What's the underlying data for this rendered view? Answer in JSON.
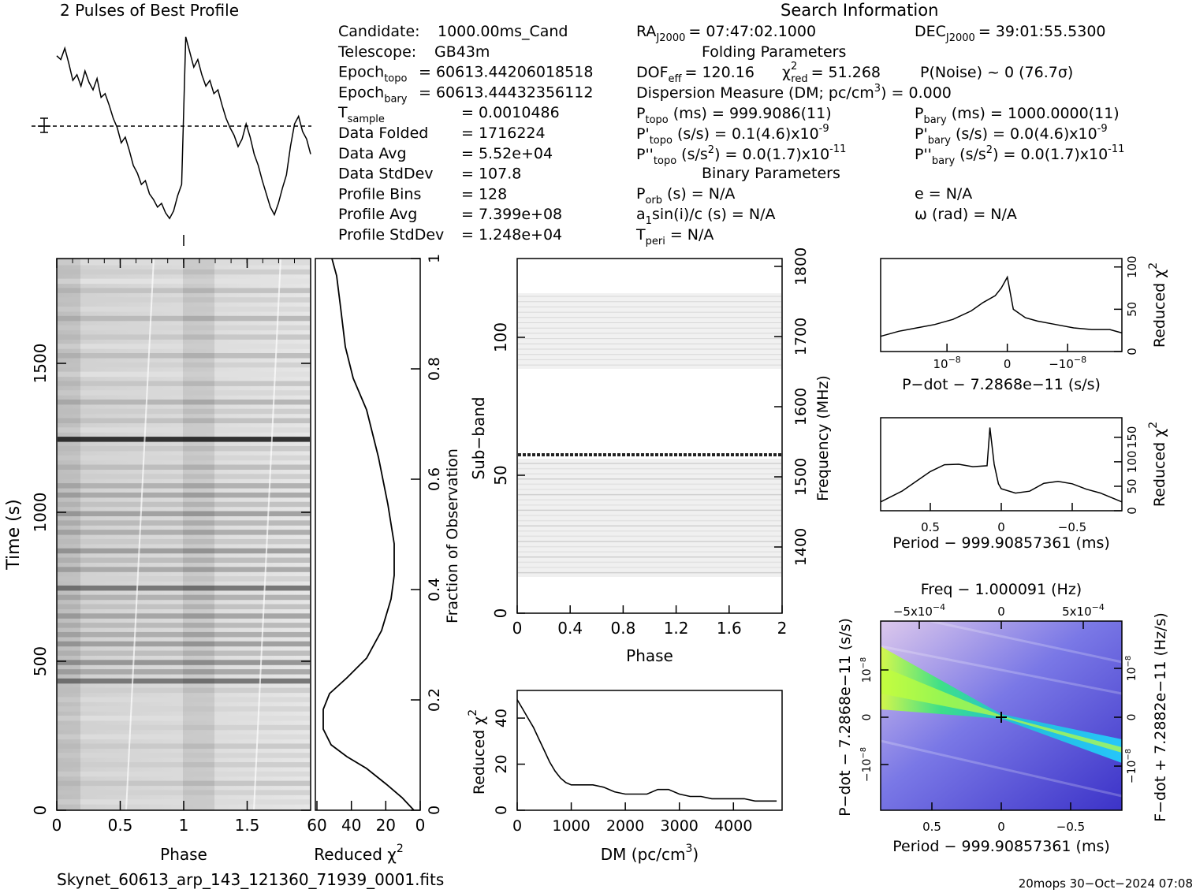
{
  "profile": {
    "title": "2 Pulses of Best Profile"
  },
  "search_info": {
    "title": "Search Information",
    "left": [
      {
        "label": "Candidate:",
        "value": "1000.00ms_Cand"
      },
      {
        "label": "Telescope:",
        "value": "GB43m"
      },
      {
        "label": "Epoch",
        "sub": "topo",
        "value": "= 60613.44206018518"
      },
      {
        "label": "Epoch",
        "sub": "bary",
        "value": "= 60613.44432356112"
      },
      {
        "label": "T",
        "sub": "sample",
        "value": "=   0.0010486"
      },
      {
        "label": "Data Folded",
        "value": "=   1716224"
      },
      {
        "label": "Data Avg",
        "value": "=   5.52e+04"
      },
      {
        "label": "Data StdDev",
        "value": "=   107.8"
      },
      {
        "label": "Profile Bins",
        "value": "=   128"
      },
      {
        "label": "Profile Avg",
        "value": "=   7.399e+08"
      },
      {
        "label": "Profile StdDev",
        "value": "=   1.248e+04"
      }
    ],
    "ra": "RA",
    "ra_sub": "J2000",
    "ra_value": "= 07:47:02.1000",
    "dec": "DEC",
    "dec_sub": "J2000",
    "dec_value": "= 39:01:55.5300",
    "folding_title": "Folding Parameters",
    "dof": "DOF",
    "dof_sub": "eff",
    "dof_value": "= 120.16",
    "chi": "χ",
    "chi_sup": "2",
    "chi_sub": "red",
    "chi_value": "= 51.268",
    "pnoise": "P(Noise) ~ 0    (76.7σ)",
    "dm_line": "Dispersion Measure (DM; pc/cm",
    "dm_sup": "3",
    "dm_value": ") = 0.000",
    "ptopo": "P",
    "ptopo_sub": "topo",
    "ptopo_value": "(ms) =  999.9086(11)",
    "pbary": "P",
    "pbary_sub": "bary",
    "pbary_value": "(ms) =  1000.0000(11)",
    "pdtopo": "P'",
    "pdtopo_sub": "topo",
    "pdtopo_value": "(s/s) =  0.1(4.6)x10",
    "pdtopo_exp": "-9",
    "pdbary": "P'",
    "pdbary_sub": "bary",
    "pdbary_value": "(s/s) = 0.0(4.6)x10",
    "pdbary_exp": "-9",
    "pddtopo": "P''",
    "pddtopo_sub": "topo",
    "pddtopo_value": "(s/s",
    "pddtopo_sup": "2",
    "pddtopo_value2": ") = 0.0(1.7)x10",
    "pddtopo_exp": "-11",
    "pddbary": "P''",
    "pddbary_sub": "bary",
    "pddbary_value": "(s/s",
    "pddbary_sup": "2",
    "pddbary_value2": ") = 0.0(1.7)x10",
    "pddbary_exp": "-11",
    "binary_title": "Binary Parameters",
    "porb": "P",
    "porb_sub": "orb",
    "porb_value": "(s) = N/A",
    "e_value": "e = N/A",
    "a1": "a",
    "a1_sub": "1",
    "a1_value": "sin(i)/c (s) = N/A",
    "omega_value": "ω (rad) = N/A",
    "tperi": "T",
    "tperi_sub": "peri",
    "tperi_value": "= N/A"
  },
  "time_phase": {
    "ylabel": "Time (s)",
    "xlabel": "Phase",
    "xticks": [
      "0",
      "0.5",
      "1",
      "1.5"
    ],
    "yticks": [
      "0",
      "500",
      "1000",
      "1500"
    ]
  },
  "time_chi": {
    "xlabel": "Reduced χ",
    "xlabel_sup": "2",
    "xticks": [
      "60",
      "40",
      "20",
      "0"
    ],
    "right_label": "Fraction of Observation",
    "right_ticks": [
      "0",
      "0.2",
      "0.4",
      "0.6",
      "0.8",
      "1"
    ]
  },
  "subband": {
    "ylabel": "Sub−band",
    "xlabel": "Phase",
    "xticks": [
      "0",
      "0.4",
      "0.8",
      "1.2",
      "1.6",
      "2"
    ],
    "yticks": [
      "0",
      "50",
      "100"
    ],
    "right_label": "Frequency (MHz)",
    "right_ticks": [
      "1400",
      "1500",
      "1600",
      "1700",
      "1800"
    ]
  },
  "dm_plot": {
    "ylabel": "Reduced χ",
    "ylabel_sup": "2",
    "xlabel": "DM (pc/cm",
    "xlabel_sup": "3",
    "xlabel_end": ")",
    "xticks": [
      "0",
      "1000",
      "2000",
      "3000",
      "4000"
    ],
    "yticks": [
      "0",
      "20",
      "40"
    ]
  },
  "pdot_plot": {
    "xlabel": "P−dot − 7.2868e−11 (s/s)",
    "xticks": [
      "10",
      "0",
      "−10"
    ],
    "xtick_exp": [
      "−8",
      "",
      "−8"
    ],
    "right_label": "Reduced χ",
    "right_sup": "2",
    "right_ticks": [
      "0",
      "50",
      "100"
    ]
  },
  "period_plot": {
    "xlabel": "Period − 999.90857361 (ms)",
    "xticks": [
      "0.5",
      "0",
      "−0.5"
    ],
    "right_label": "Reduced χ",
    "right_sup": "2",
    "right_ticks": [
      "0",
      "50",
      "100",
      "150"
    ]
  },
  "pp_plot": {
    "top_label": "Freq − 1.000091 (Hz)",
    "top_ticks": [
      "−5x10",
      "0",
      "5x10"
    ],
    "top_exp": [
      "−4",
      "",
      "−4"
    ],
    "xlabel": "Period − 999.90857361 (ms)",
    "xticks": [
      "0.5",
      "0",
      "−0.5"
    ],
    "left_label": "P−dot − 7.2868e−11 (s/s)",
    "left_ticks": [
      "10",
      "0",
      "−10"
    ],
    "left_exp": [
      "−8",
      "",
      "−8"
    ],
    "right_label": "F−dot + 7.2882e−11 (Hz/s)",
    "right_ticks": [
      "10",
      "0",
      "−10"
    ],
    "right_exp": [
      "−8",
      "",
      "−8"
    ]
  },
  "footer": {
    "filename": "Skynet_60613_arp_143_121360_71939_0001.fits",
    "stamp": "20mops 30−Oct−2024 07:08"
  },
  "chart_data": [
    {
      "type": "line",
      "title": "2 Pulses of Best Profile",
      "x_range": [
        0,
        2
      ],
      "values": [
        0.88,
        0.86,
        0.92,
        0.84,
        0.75,
        0.78,
        0.72,
        0.8,
        0.74,
        0.7,
        0.76,
        0.66,
        0.68,
        0.62,
        0.55,
        0.5,
        0.42,
        0.45,
        0.38,
        0.3,
        0.26,
        0.2,
        0.22,
        0.15,
        0.12,
        0.08,
        0.1,
        0.05,
        0.02,
        0.06,
        0.14,
        0.2,
        0.98,
        0.9,
        0.82,
        0.86,
        0.78,
        0.72,
        0.75,
        0.68,
        0.7,
        0.62,
        0.55,
        0.5,
        0.46,
        0.4,
        0.44,
        0.52,
        0.45,
        0.36,
        0.3,
        0.22,
        0.15,
        0.08,
        0.04,
        0.1,
        0.18,
        0.25,
        0.4,
        0.52,
        0.56,
        0.48,
        0.44,
        0.36
      ]
    },
    {
      "type": "line",
      "title": "DM",
      "xlabel": "DM (pc/cm3)",
      "ylabel": "Reduced χ2",
      "xlim": [
        0,
        4900
      ],
      "ylim": [
        0,
        52
      ],
      "x": [
        0,
        100,
        200,
        300,
        400,
        500,
        600,
        700,
        800,
        900,
        1000,
        1200,
        1400,
        1600,
        1800,
        2000,
        2200,
        2400,
        2600,
        2800,
        3000,
        3200,
        3400,
        3600,
        3800,
        4000,
        4200,
        4400,
        4600,
        4800
      ],
      "y": [
        48,
        44,
        40,
        36,
        31,
        26,
        21,
        17,
        14,
        12,
        11,
        11,
        11,
        10,
        8,
        7,
        7,
        7,
        9,
        9,
        7,
        6,
        6,
        5,
        5,
        5,
        5,
        4,
        4,
        4
      ]
    },
    {
      "type": "line",
      "title": "P-dot",
      "xlabel": "P−dot − 7.2868e−11 (s/s)",
      "ylabel": "Reduced χ2",
      "xlim": [
        2.1e-08,
        -1.9e-08
      ],
      "ylim": [
        0,
        110
      ],
      "x": [
        2.1e-08,
        1.8e-08,
        1.5e-08,
        1.2e-08,
        9e-09,
        6e-09,
        4e-09,
        2e-09,
        1e-09,
        0,
        -1e-09,
        -3e-09,
        -5e-09,
        -8e-09,
        -1.1e-08,
        -1.4e-08,
        -1.7e-08,
        -1.9e-08
      ],
      "y": [
        18,
        24,
        28,
        32,
        38,
        48,
        58,
        66,
        75,
        88,
        50,
        40,
        36,
        32,
        28,
        26,
        26,
        22
      ]
    },
    {
      "type": "line",
      "title": "Period",
      "xlabel": "Period − 999.90857361 (ms)",
      "ylabel": "Reduced χ2",
      "xlim": [
        0.85,
        -0.85
      ],
      "ylim": [
        0,
        190
      ],
      "x": [
        0.85,
        0.7,
        0.6,
        0.5,
        0.4,
        0.3,
        0.2,
        0.1,
        0.08,
        0.05,
        0.02,
        0,
        -0.1,
        -0.2,
        -0.3,
        -0.4,
        -0.5,
        -0.6,
        -0.7,
        -0.85
      ],
      "y": [
        18,
        40,
        60,
        80,
        94,
        95,
        90,
        92,
        170,
        95,
        55,
        45,
        36,
        40,
        56,
        60,
        55,
        44,
        36,
        18
      ]
    }
  ]
}
